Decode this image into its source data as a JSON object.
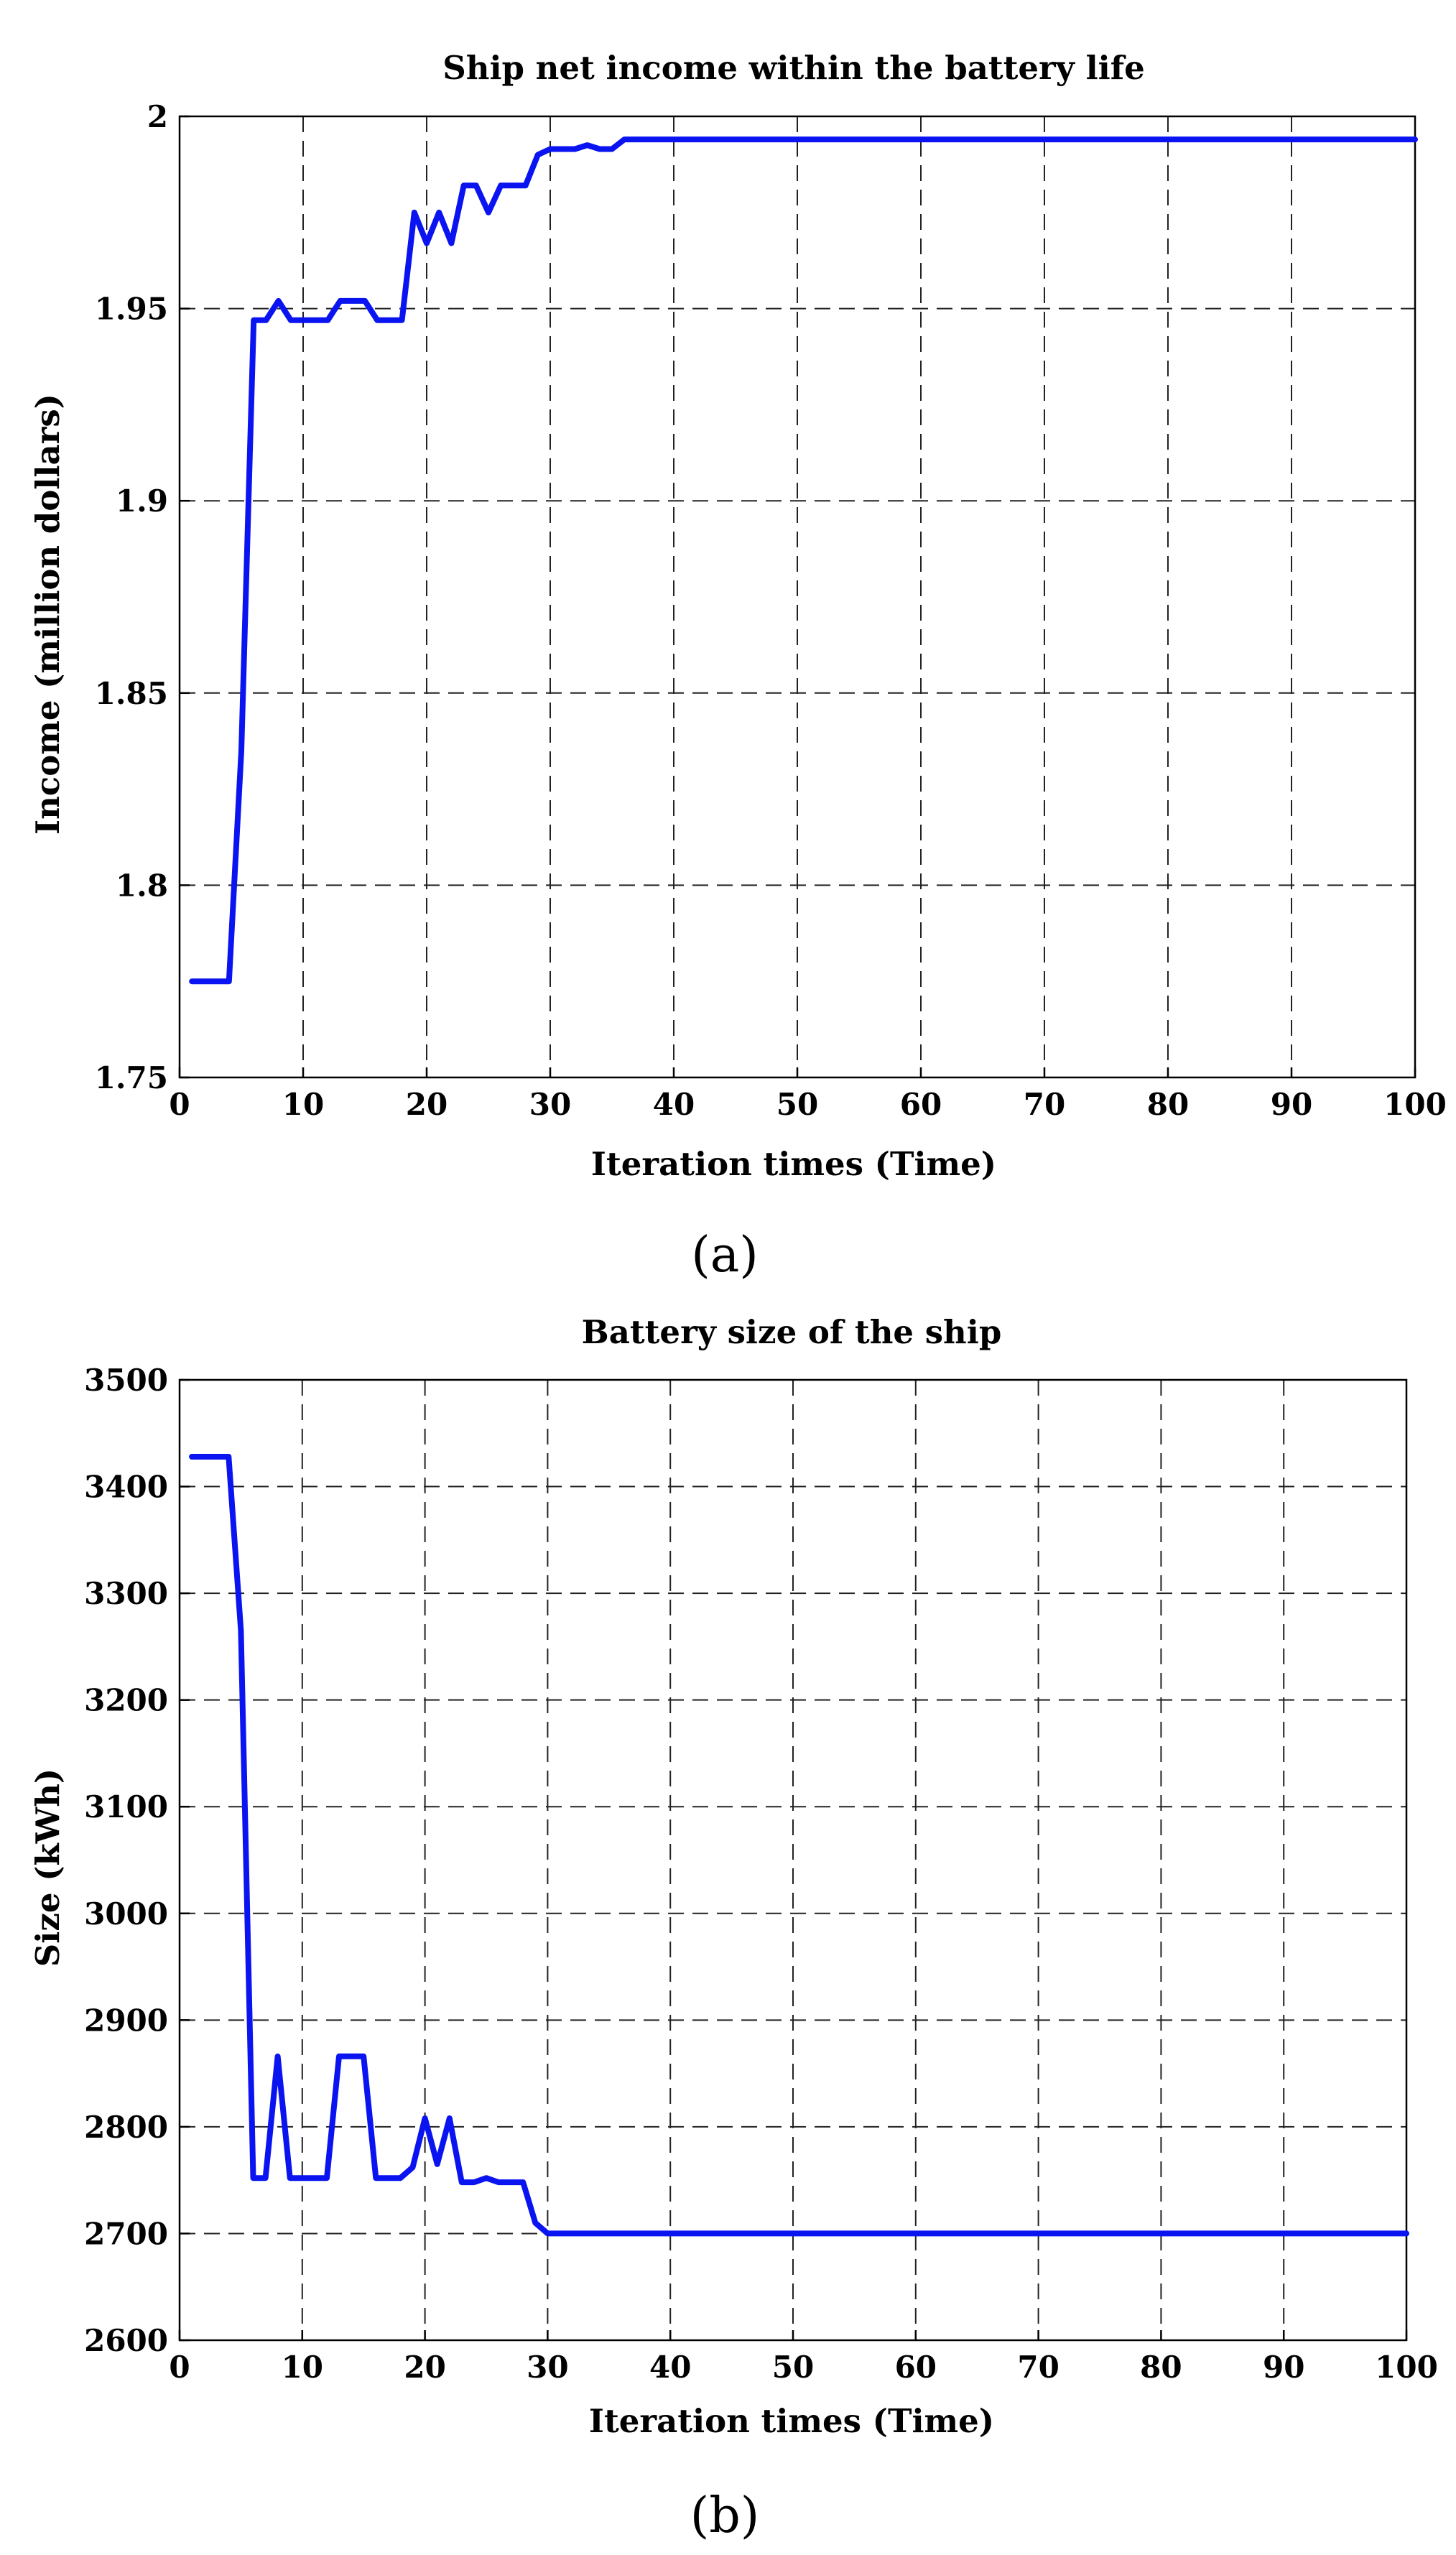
{
  "chart_data": [
    {
      "type": "line",
      "panel_label": "(a)",
      "title": "Ship net income within the battery life",
      "xlabel": "Iteration times (Time)",
      "ylabel": "Income (million dollars)",
      "xlim": [
        0,
        100
      ],
      "ylim": [
        1.75,
        2.0
      ],
      "xticks": [
        0,
        10,
        20,
        30,
        40,
        50,
        60,
        70,
        80,
        90,
        100
      ],
      "yticks": [
        1.75,
        1.8,
        1.85,
        1.9,
        1.95,
        2.0
      ],
      "ytick_labels": [
        "1.75",
        "1.8",
        "1.85",
        "1.9",
        "1.95",
        "2"
      ],
      "grid": true,
      "series_color": "#0a14f0",
      "x": [
        1,
        2,
        3,
        4,
        5,
        6,
        7,
        8,
        9,
        10,
        11,
        12,
        13,
        14,
        15,
        16,
        17,
        18,
        19,
        20,
        21,
        22,
        23,
        24,
        25,
        26,
        27,
        28,
        29,
        30,
        31,
        32,
        33,
        34,
        35,
        36,
        40,
        50,
        60,
        70,
        80,
        90,
        100
      ],
      "y": [
        1.775,
        1.775,
        1.775,
        1.775,
        1.835,
        1.947,
        1.947,
        1.952,
        1.947,
        1.947,
        1.947,
        1.947,
        1.952,
        1.952,
        1.952,
        1.947,
        1.947,
        1.947,
        1.975,
        1.967,
        1.975,
        1.967,
        1.982,
        1.982,
        1.975,
        1.982,
        1.982,
        1.982,
        1.99,
        1.9915,
        1.9915,
        1.9915,
        1.9925,
        1.9915,
        1.9915,
        1.994,
        1.994,
        1.994,
        1.994,
        1.994,
        1.994,
        1.994,
        1.994
      ]
    },
    {
      "type": "line",
      "panel_label": "(b)",
      "title": "Battery size of the ship",
      "xlabel": "Iteration times (Time)",
      "ylabel": "Size (kWh)",
      "xlim": [
        0,
        100
      ],
      "ylim": [
        2600,
        3500
      ],
      "xticks": [
        0,
        10,
        20,
        30,
        40,
        50,
        60,
        70,
        80,
        90,
        100
      ],
      "yticks": [
        2600,
        2700,
        2800,
        2900,
        3000,
        3100,
        3200,
        3300,
        3400,
        3500
      ],
      "ytick_labels": [
        "2600",
        "2700",
        "2800",
        "2900",
        "3000",
        "3100",
        "3200",
        "3300",
        "3400",
        "3500"
      ],
      "grid": true,
      "series_color": "#0a14f0",
      "x": [
        1,
        2,
        3,
        4,
        5,
        6,
        7,
        8,
        9,
        10,
        11,
        12,
        13,
        14,
        15,
        16,
        17,
        18,
        19,
        20,
        21,
        22,
        23,
        24,
        25,
        26,
        27,
        28,
        29,
        30,
        40,
        50,
        60,
        70,
        80,
        90,
        100
      ],
      "y": [
        3428,
        3428,
        3428,
        3428,
        3265,
        2752,
        2752,
        2866,
        2752,
        2752,
        2752,
        2752,
        2866,
        2866,
        2866,
        2752,
        2752,
        2752,
        2762,
        2808,
        2765,
        2808,
        2748,
        2748,
        2752,
        2748,
        2748,
        2748,
        2710,
        2700,
        2700,
        2700,
        2700,
        2700,
        2700,
        2700,
        2700
      ]
    }
  ]
}
